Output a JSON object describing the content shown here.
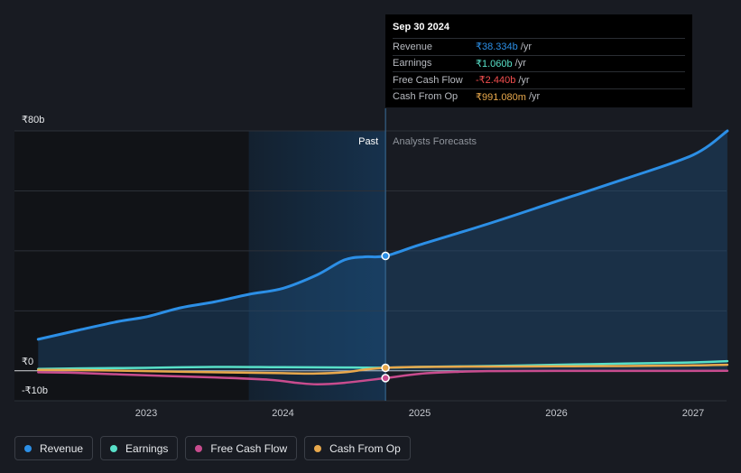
{
  "chart_data": {
    "type": "line",
    "x_range": [
      2022.2,
      2027.25
    ],
    "ylim": [
      -10,
      80
    ],
    "y_tick_labels": [
      {
        "value": 80,
        "label": "₹80b"
      },
      {
        "value": 0,
        "label": "₹0"
      },
      {
        "value": -10,
        "label": "-₹10b"
      }
    ],
    "x_ticks": [
      2023,
      2024,
      2025,
      2026,
      2027
    ],
    "x_tick_labels": [
      "2023",
      "2024",
      "2025",
      "2026",
      "2027"
    ],
    "past_label": "Past",
    "forecast_label": "Analysts Forecasts",
    "past_end_x": 2024.75,
    "highlight_start_x": 2023.75,
    "series": [
      {
        "name": "Revenue",
        "color": "#2c8fe6",
        "area": true,
        "points": [
          [
            2022.21,
            10.5
          ],
          [
            2022.5,
            13.5
          ],
          [
            2022.8,
            16.5
          ],
          [
            2023.0,
            18.0
          ],
          [
            2023.25,
            21.0
          ],
          [
            2023.5,
            23.0
          ],
          [
            2023.75,
            25.5
          ],
          [
            2024.0,
            27.5
          ],
          [
            2024.25,
            32.0
          ],
          [
            2024.45,
            37.0
          ],
          [
            2024.6,
            38.0
          ],
          [
            2024.75,
            38.3
          ],
          [
            2025.0,
            42.0
          ],
          [
            2025.5,
            49.0
          ],
          [
            2026.0,
            56.5
          ],
          [
            2026.5,
            64.0
          ],
          [
            2027.0,
            72.0
          ],
          [
            2027.25,
            80.0
          ]
        ]
      },
      {
        "name": "Earnings",
        "color": "#58e0c8",
        "points": [
          [
            2022.21,
            0.6
          ],
          [
            2022.5,
            0.8
          ],
          [
            2023.0,
            1.0
          ],
          [
            2023.5,
            1.3
          ],
          [
            2024.0,
            1.2
          ],
          [
            2024.5,
            1.1
          ],
          [
            2024.75,
            1.06
          ],
          [
            2025.0,
            1.3
          ],
          [
            2025.5,
            1.6
          ],
          [
            2026.0,
            2.0
          ],
          [
            2026.5,
            2.4
          ],
          [
            2027.0,
            2.8
          ],
          [
            2027.25,
            3.2
          ]
        ]
      },
      {
        "name": "Free Cash Flow",
        "color": "#c84c8e",
        "points": [
          [
            2022.21,
            -0.5
          ],
          [
            2022.5,
            -0.7
          ],
          [
            2023.0,
            -1.5
          ],
          [
            2023.5,
            -2.2
          ],
          [
            2023.9,
            -3.0
          ],
          [
            2024.1,
            -4.0
          ],
          [
            2024.25,
            -4.5
          ],
          [
            2024.45,
            -4.0
          ],
          [
            2024.75,
            -2.44
          ],
          [
            2025.0,
            -1.0
          ],
          [
            2025.3,
            -0.3
          ],
          [
            2025.5,
            -0.1
          ],
          [
            2026.0,
            -0.05
          ],
          [
            2027.25,
            0.0
          ]
        ]
      },
      {
        "name": "Cash From Op",
        "color": "#e8a84c",
        "points": [
          [
            2022.21,
            0.3
          ],
          [
            2022.6,
            0.2
          ],
          [
            2023.0,
            -0.1
          ],
          [
            2023.5,
            -0.5
          ],
          [
            2024.0,
            -0.8
          ],
          [
            2024.25,
            -0.9
          ],
          [
            2024.45,
            -0.5
          ],
          [
            2024.6,
            0.4
          ],
          [
            2024.75,
            0.99
          ],
          [
            2025.0,
            1.3
          ],
          [
            2025.5,
            1.4
          ],
          [
            2026.0,
            1.5
          ],
          [
            2026.5,
            1.6
          ],
          [
            2027.0,
            1.8
          ],
          [
            2027.25,
            2.0
          ]
        ]
      }
    ],
    "tooltip": {
      "date": "Sep 30 2024",
      "rows": [
        {
          "label": "Revenue",
          "value": "₹38.334b",
          "unit": "/yr",
          "color": "#2c8fe6"
        },
        {
          "label": "Earnings",
          "value": "₹1.060b",
          "unit": "/yr",
          "color": "#58e0c8"
        },
        {
          "label": "Free Cash Flow",
          "value": "-₹2.440b",
          "unit": "/yr",
          "color": "#f24e4e"
        },
        {
          "label": "Cash From Op",
          "value": "₹991.080m",
          "unit": "/yr",
          "color": "#e8a84c"
        }
      ]
    },
    "legend": [
      {
        "name": "Revenue",
        "color": "#2c8fe6"
      },
      {
        "name": "Earnings",
        "color": "#58e0c8"
      },
      {
        "name": "Free Cash Flow",
        "color": "#c84c8e"
      },
      {
        "name": "Cash From Op",
        "color": "#e8a84c"
      }
    ]
  }
}
